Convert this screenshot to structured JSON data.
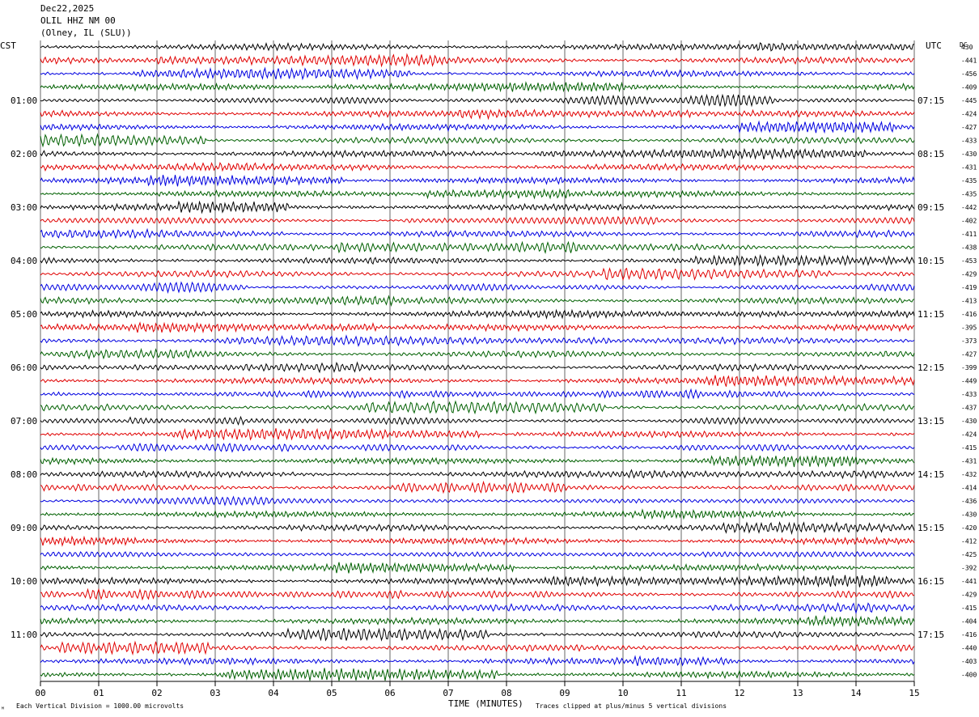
{
  "header": {
    "date": "Dec22,2025",
    "station": "OLIL HHZ NM 00",
    "location": "(Olney, IL (SLU))"
  },
  "timezones": {
    "left": "CST",
    "right": "UTC",
    "dc_header": "DC"
  },
  "chart_data": {
    "type": "line",
    "title": "Dec22,2025 OLIL HHZ NM 00 (Olney, IL (SLU))",
    "xlabel": "TIME (MINUTES)",
    "xlim": [
      0,
      15
    ],
    "x_ticks": [
      "00",
      "01",
      "02",
      "03",
      "04",
      "05",
      "06",
      "07",
      "08",
      "09",
      "10",
      "11",
      "12",
      "13",
      "14",
      "15"
    ],
    "grid": true,
    "trace_colors": [
      "#000000",
      "#e00000",
      "#0000e0",
      "#006000"
    ],
    "trace_count": 48,
    "minutes_per_trace": 15,
    "left_hour_labels": [
      "01:00",
      "02:00",
      "03:00",
      "04:00",
      "05:00",
      "06:00",
      "07:00",
      "08:00",
      "09:00",
      "10:00",
      "11:00"
    ],
    "right_hour_labels": [
      "07:15",
      "08:15",
      "09:15",
      "10:15",
      "11:15",
      "12:15",
      "13:15",
      "14:15",
      "15:15",
      "16:15",
      "17:15"
    ],
    "dc_offsets": [
      "430",
      "-441",
      "-456",
      "-409",
      "-445",
      "-424",
      "-427",
      "-433",
      "-430",
      "-431",
      "-435",
      "-435",
      "-442",
      "-402",
      "-411",
      "-438",
      "-453",
      "-429",
      "-419",
      "-413",
      "-416",
      "-395",
      "-373",
      "-427",
      "-399",
      "-449",
      "-433",
      "-437",
      "-430",
      "-424",
      "-415",
      "-431",
      "-432",
      "-414",
      "-436",
      "-430",
      "-420",
      "-412",
      "-425",
      "-392",
      "-441",
      "-429",
      "-415",
      "-404",
      "-416",
      "-440",
      "-403",
      "-400"
    ]
  },
  "footer": {
    "scale_note": "Each Vertical Division = 1000.00 microvolts",
    "clip_note": "Traces clipped at plus/minus 5 vertical divisions",
    "corner_mark": "ᴹ"
  }
}
